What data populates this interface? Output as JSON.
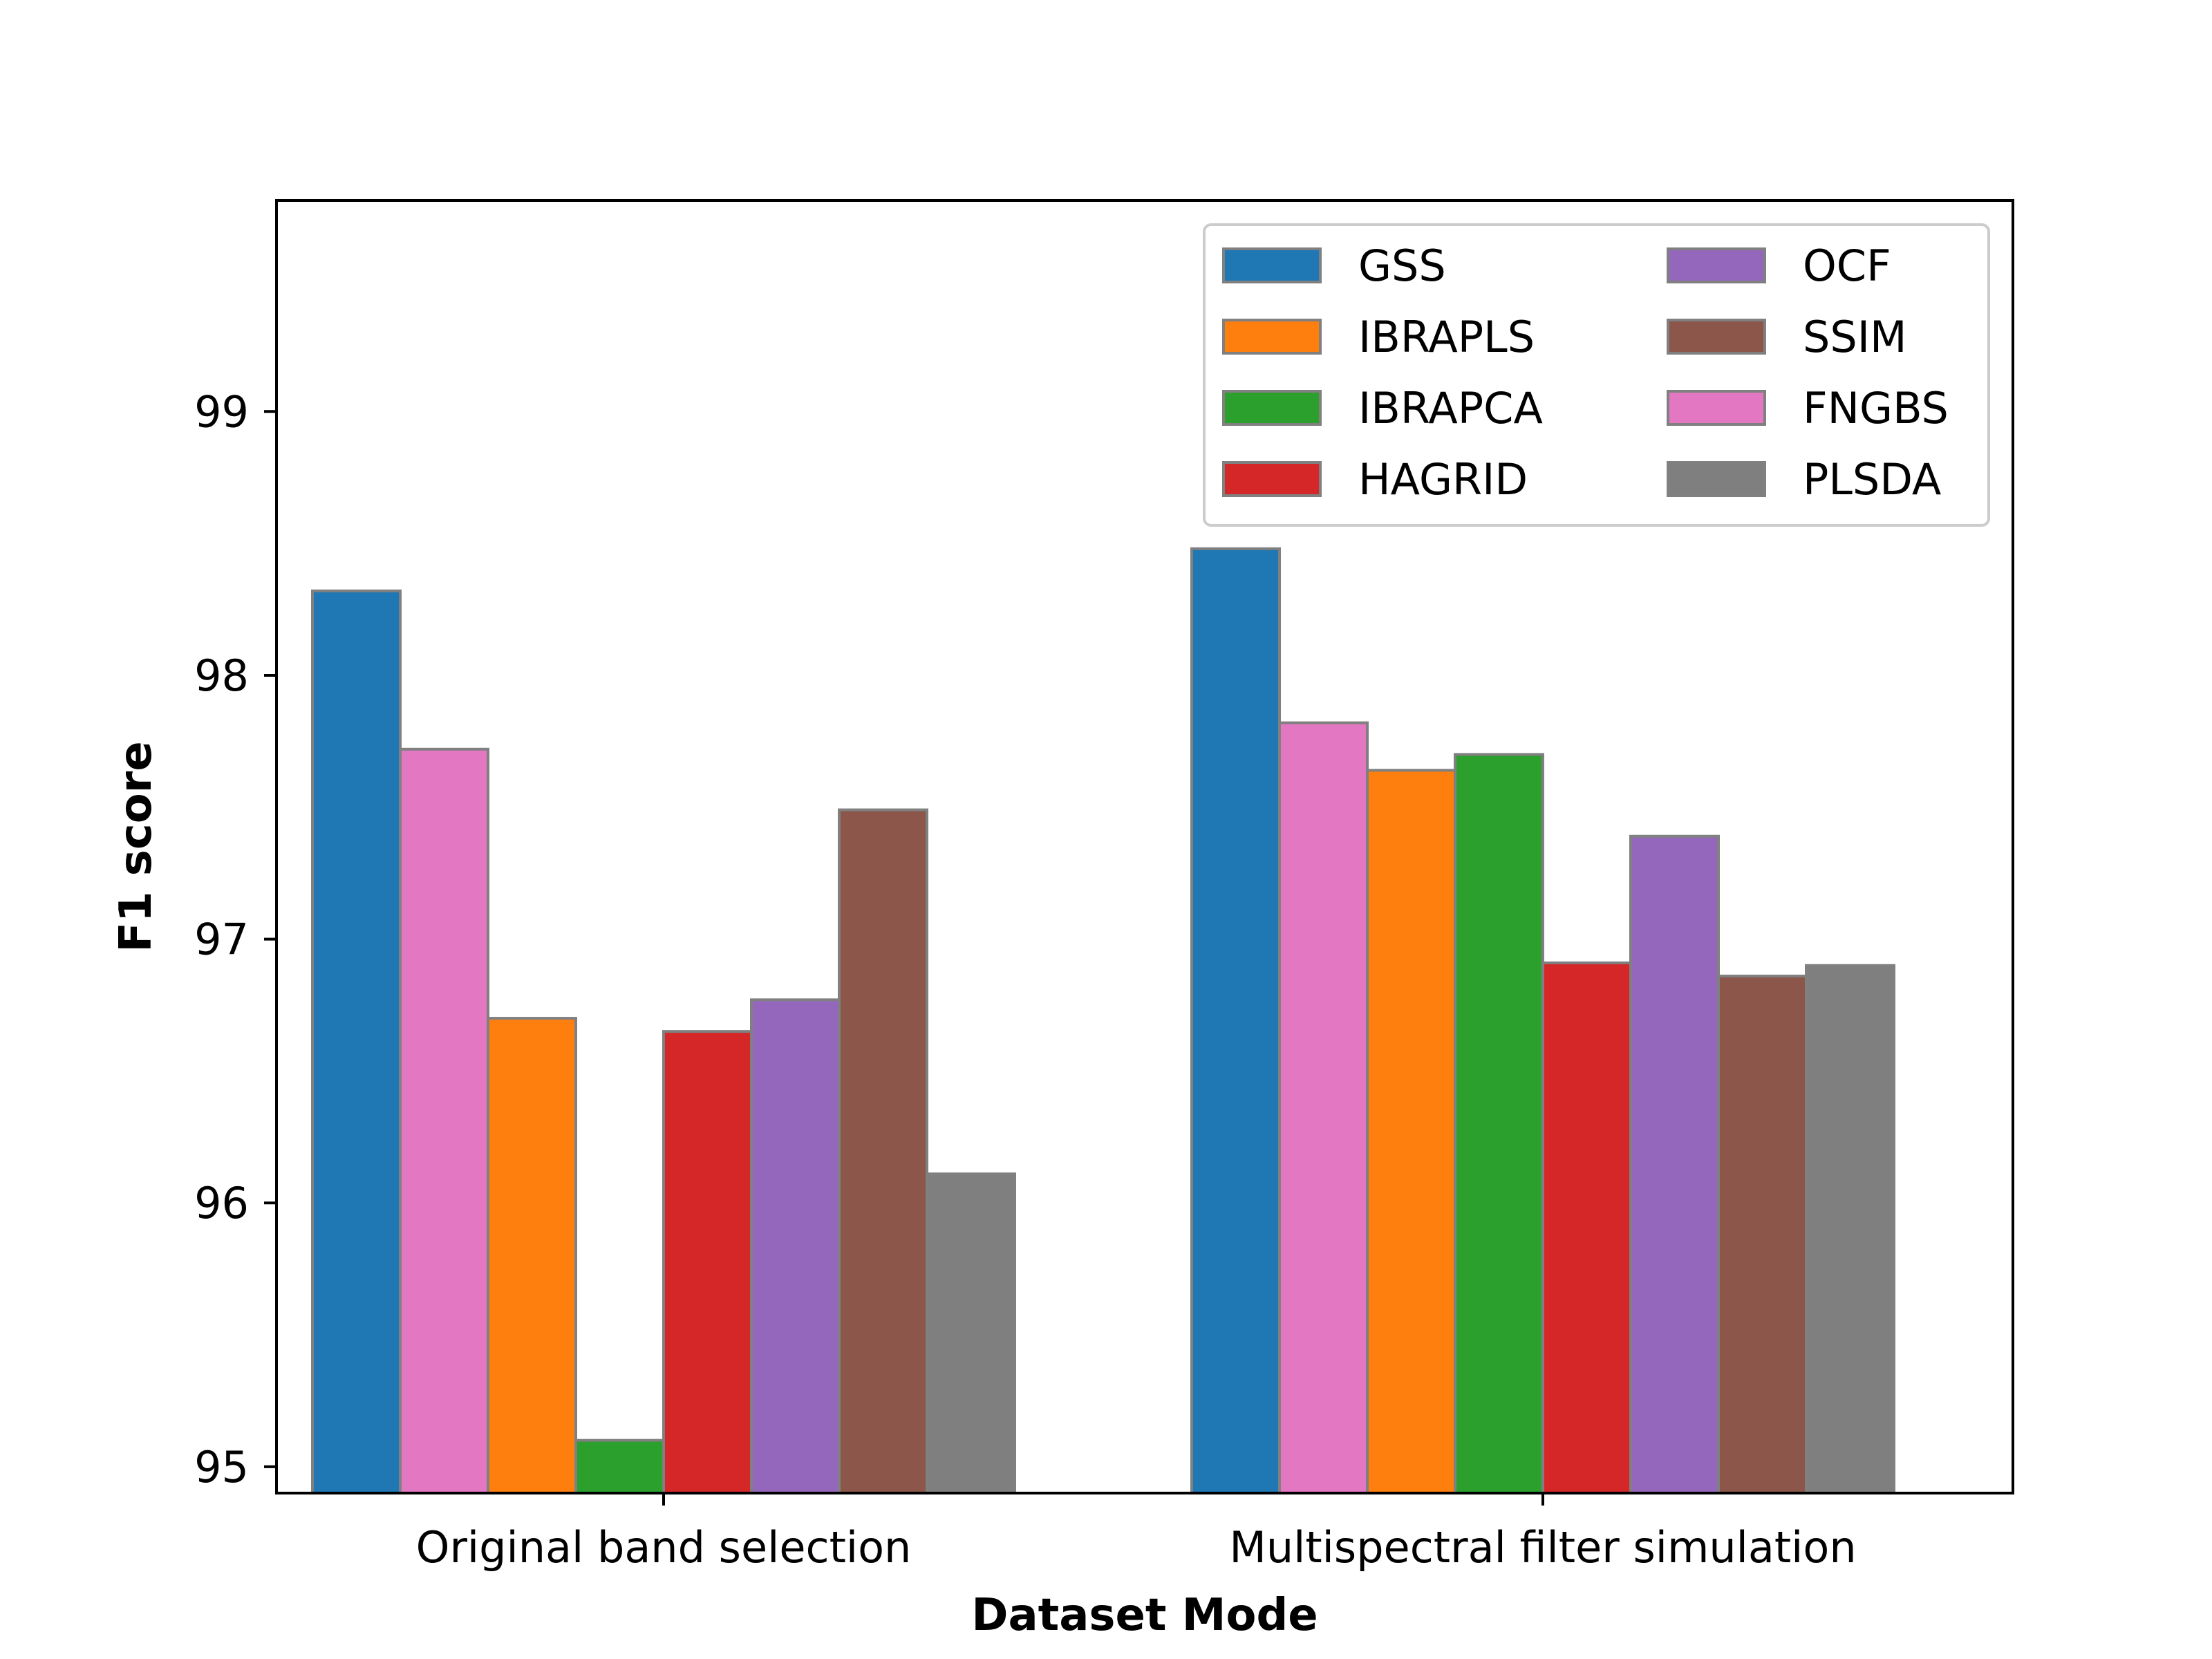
{
  "chart_data": {
    "type": "bar",
    "xlabel": "Dataset Mode",
    "ylabel": "F1 score",
    "ylim": [
      94.9,
      99.8
    ],
    "yticks": [
      95,
      96,
      97,
      98,
      99
    ],
    "categories": [
      "Original band selection",
      "Multispectral filter simulation"
    ],
    "series": [
      {
        "name": "GSS",
        "color": "#1f77b4",
        "values": [
          98.32,
          98.48
        ]
      },
      {
        "name": "FNGBS",
        "color": "#e377c2",
        "values": [
          97.72,
          97.82
        ]
      },
      {
        "name": "IBRAPLS",
        "color": "#ff7f0e",
        "values": [
          96.7,
          97.64
        ]
      },
      {
        "name": "IBRAPCA",
        "color": "#2ca02c",
        "values": [
          95.1,
          97.7
        ]
      },
      {
        "name": "HAGRID",
        "color": "#d62728",
        "values": [
          96.65,
          96.91
        ]
      },
      {
        "name": "OCF",
        "color": "#9467bd",
        "values": [
          96.77,
          97.39
        ]
      },
      {
        "name": "SSIM",
        "color": "#8c564b",
        "values": [
          97.49,
          96.86
        ]
      },
      {
        "name": "PLSDA",
        "color": "#7f7f7f",
        "values": [
          96.11,
          96.9
        ]
      }
    ],
    "legend": {
      "position": "top-right",
      "columns": 2,
      "order": [
        "GSS",
        "IBRAPLS",
        "IBRAPCA",
        "HAGRID",
        "OCF",
        "SSIM",
        "FNGBS",
        "PLSDA"
      ]
    },
    "grid": false,
    "bar_edge_color": "#808080"
  }
}
